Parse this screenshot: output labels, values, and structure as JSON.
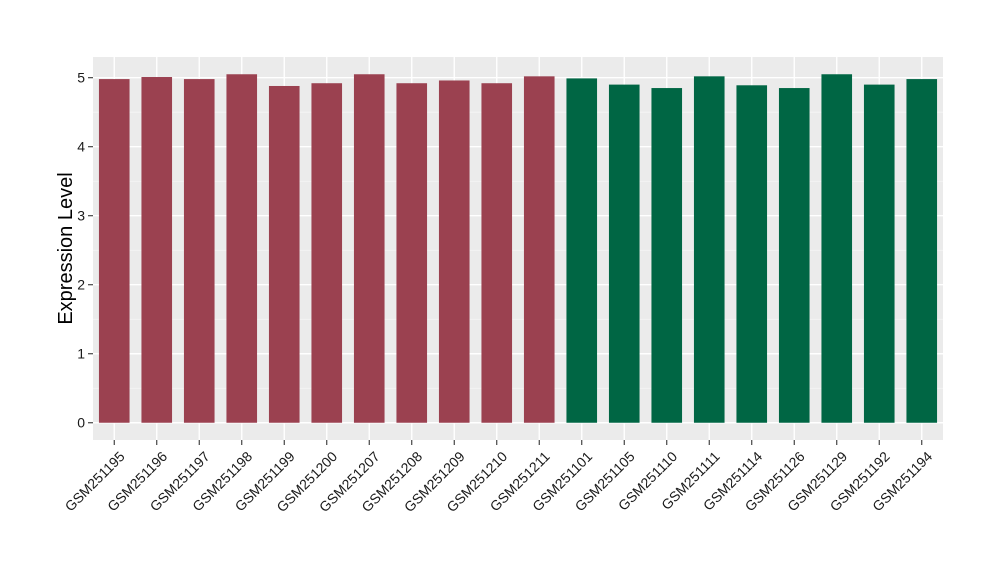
{
  "chart_data": {
    "type": "bar",
    "title": "",
    "xlabel": "",
    "ylabel": "Expression Level",
    "ylim": [
      -0.25,
      5.3
    ],
    "yticks": [
      0,
      1,
      2,
      3,
      4,
      5
    ],
    "grid": true,
    "legend": "none",
    "categories": [
      "GSM251195",
      "GSM251196",
      "GSM251197",
      "GSM251198",
      "GSM251199",
      "GSM251200",
      "GSM251207",
      "GSM251208",
      "GSM251209",
      "GSM251210",
      "GSM251211",
      "GSM251101",
      "GSM251105",
      "GSM251110",
      "GSM251111",
      "GSM251114",
      "GSM251126",
      "GSM251129",
      "GSM251192",
      "GSM251194"
    ],
    "values": [
      4.98,
      5.01,
      4.98,
      5.05,
      4.88,
      4.92,
      5.05,
      4.92,
      4.96,
      4.92,
      5.02,
      4.99,
      4.9,
      4.85,
      5.02,
      4.89,
      4.85,
      5.05,
      4.9,
      4.98
    ],
    "group_colors": [
      "#9b4150",
      "#006644"
    ],
    "bar_group": [
      0,
      0,
      0,
      0,
      0,
      0,
      0,
      0,
      0,
      0,
      0,
      1,
      1,
      1,
      1,
      1,
      1,
      1,
      1,
      1
    ]
  }
}
